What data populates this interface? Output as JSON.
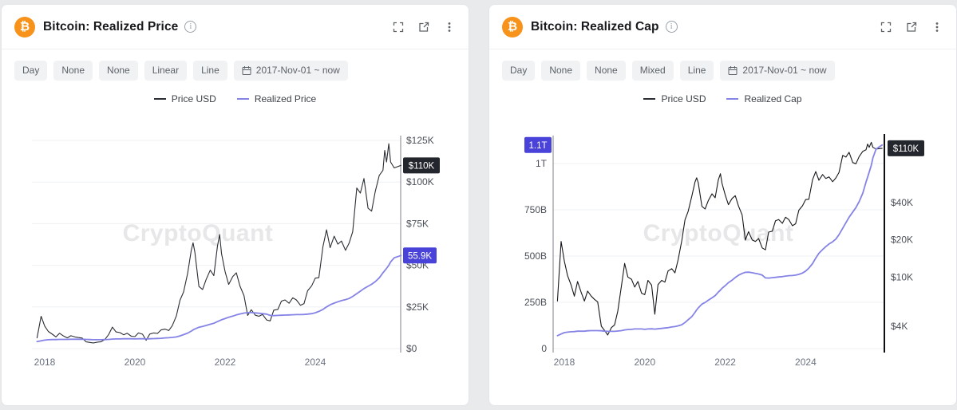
{
  "page": {
    "background": "#e9eaec",
    "watermark": "CryptoQuant"
  },
  "panels": [
    {
      "title": "Bitcoin: Realized Price",
      "icons": [
        "bitcoin-icon",
        "info-icon",
        "fullscreen-icon",
        "open-in-new-icon",
        "more-options-icon"
      ],
      "toolbar": {
        "chips": [
          "Day",
          "None",
          "None",
          "Linear",
          "Line"
        ],
        "date_range": "2017-Nov-01 ~ now"
      },
      "legend": [
        {
          "label": "Price USD",
          "color": "#2a2e34"
        },
        {
          "label": "Realized Price",
          "color": "#8583e6"
        }
      ]
    },
    {
      "title": "Bitcoin: Realized Cap",
      "icons": [
        "bitcoin-icon",
        "info-icon",
        "fullscreen-icon",
        "open-in-new-icon",
        "more-options-icon"
      ],
      "toolbar": {
        "chips": [
          "Day",
          "None",
          "None",
          "Mixed",
          "Line"
        ],
        "date_range": "2017-Nov-01 ~ now"
      },
      "legend": [
        {
          "label": "Price USD",
          "color": "#2a2e34"
        },
        {
          "label": "Realized Cap",
          "color": "#8583e6"
        }
      ]
    }
  ],
  "shared_series": {
    "x_years": [
      2017.83,
      2017.92,
      2018.0,
      2018.08,
      2018.17,
      2018.25,
      2018.33,
      2018.42,
      2018.5,
      2018.58,
      2018.67,
      2018.75,
      2018.83,
      2018.92,
      2019.0,
      2019.08,
      2019.17,
      2019.25,
      2019.33,
      2019.42,
      2019.5,
      2019.58,
      2019.67,
      2019.75,
      2019.83,
      2019.92,
      2020.0,
      2020.08,
      2020.17,
      2020.25,
      2020.33,
      2020.42,
      2020.5,
      2020.58,
      2020.67,
      2020.75,
      2020.83,
      2020.92,
      2021.0,
      2021.08,
      2021.17,
      2021.25,
      2021.29,
      2021.33,
      2021.42,
      2021.5,
      2021.58,
      2021.67,
      2021.75,
      2021.83,
      2021.88,
      2021.92,
      2022.0,
      2022.08,
      2022.17,
      2022.25,
      2022.33,
      2022.42,
      2022.5,
      2022.58,
      2022.67,
      2022.75,
      2022.83,
      2022.92,
      2023.0,
      2023.08,
      2023.17,
      2023.25,
      2023.33,
      2023.42,
      2023.5,
      2023.58,
      2023.67,
      2023.75,
      2023.83,
      2023.92,
      2024.0,
      2024.08,
      2024.17,
      2024.25,
      2024.33,
      2024.42,
      2024.5,
      2024.58,
      2024.67,
      2024.75,
      2024.83,
      2024.92,
      2025.0,
      2025.08,
      2025.17,
      2025.25,
      2025.33,
      2025.42,
      2025.5,
      2025.54,
      2025.58,
      2025.63,
      2025.67,
      2025.75,
      2025.9
    ],
    "price_usd_k": [
      6.4,
      19.4,
      13.5,
      10.3,
      8.6,
      7.0,
      9.2,
      7.5,
      6.4,
      7.7,
      7.0,
      6.6,
      6.3,
      4.0,
      3.7,
      3.4,
      3.9,
      4.1,
      5.3,
      8.5,
      12.9,
      10.0,
      9.6,
      8.3,
      9.2,
      7.4,
      7.2,
      9.4,
      8.6,
      5.0,
      8.7,
      9.4,
      9.1,
      11.2,
      11.7,
      10.8,
      13.8,
      19.7,
      29.0,
      34.0,
      45.2,
      58.9,
      63.5,
      58.0,
      37.3,
      35.5,
      41.5,
      47.1,
      43.8,
      61.3,
      68.5,
      57.2,
      46.2,
      38.5,
      43.2,
      45.5,
      37.6,
      31.8,
      19.9,
      23.3,
      20.0,
      19.4,
      20.5,
      17.2,
      16.6,
      23.1,
      23.5,
      28.5,
      29.2,
      27.2,
      30.5,
      29.2,
      26.0,
      27.0,
      34.7,
      37.7,
      42.3,
      42.6,
      61.2,
      71.3,
      60.6,
      67.5,
      62.7,
      64.6,
      59.0,
      63.3,
      70.2,
      96.4,
      93.4,
      102.1,
      84.3,
      82.5,
      94.2,
      104.0,
      107.0,
      119.0,
      112.0,
      123.0,
      112.0,
      108.5,
      110.0
    ],
    "realized_price_k": [
      4.2,
      4.7,
      5.1,
      5.3,
      5.4,
      5.4,
      5.5,
      5.5,
      5.5,
      5.6,
      5.6,
      5.6,
      5.6,
      5.5,
      5.4,
      5.3,
      5.3,
      5.3,
      5.4,
      5.5,
      5.7,
      5.8,
      5.8,
      5.9,
      5.9,
      5.9,
      5.8,
      5.9,
      5.9,
      5.8,
      5.9,
      6.0,
      6.1,
      6.2,
      6.4,
      6.5,
      6.7,
      7.0,
      7.6,
      8.4,
      9.3,
      10.5,
      11.2,
      11.8,
      12.8,
      13.3,
      13.9,
      14.6,
      15.2,
      16.2,
      16.8,
      17.3,
      18.0,
      18.8,
      19.5,
      20.2,
      20.8,
      21.3,
      21.6,
      21.6,
      21.4,
      21.2,
      21.0,
      20.7,
      19.9,
      19.8,
      19.9,
      20.0,
      20.1,
      20.2,
      20.3,
      20.4,
      20.4,
      20.5,
      20.7,
      21.0,
      21.5,
      22.3,
      23.5,
      25.0,
      26.3,
      27.3,
      28.1,
      28.8,
      29.4,
      30.1,
      31.3,
      33.0,
      34.5,
      36.0,
      37.4,
      38.6,
      40.2,
      42.5,
      45.5,
      46.8,
      48.2,
      50.0,
      52.0,
      54.5,
      55.9
    ],
    "realized_cap_b": [
      70,
      79,
      86,
      89,
      91,
      92,
      94,
      94,
      94,
      96,
      97,
      97,
      97,
      96,
      94,
      93,
      93,
      93,
      95,
      97,
      101,
      103,
      104,
      106,
      106,
      106,
      104,
      106,
      107,
      105,
      107,
      109,
      111,
      113,
      117,
      119,
      123,
      129,
      141,
      156,
      173,
      196,
      209,
      220,
      240,
      249,
      261,
      274,
      286,
      305,
      316,
      326,
      340,
      356,
      370,
      384,
      396,
      406,
      412,
      413,
      410,
      406,
      403,
      397,
      382,
      381,
      383,
      385,
      387,
      389,
      392,
      394,
      395,
      397,
      401,
      408,
      419,
      435,
      459,
      489,
      515,
      535,
      551,
      565,
      577,
      592,
      616,
      650,
      680,
      710,
      738,
      762,
      794,
      840,
      900,
      926,
      954,
      990,
      1030,
      1078,
      1100
    ]
  },
  "chart_data": [
    {
      "type": "line",
      "title": "Bitcoin: Realized Price",
      "grid": "horizontal",
      "legend_position": "top-center",
      "x": {
        "ticks": [
          2018,
          2020,
          2022,
          2024
        ],
        "range": [
          2017.83,
          2025.9
        ],
        "range_label": "2017-Nov-01 ~ now"
      },
      "y_axis": {
        "side": "right",
        "scale": "linear",
        "unit": "USD thousands",
        "ticks": [
          0,
          25,
          50,
          75,
          100,
          125
        ],
        "tick_labels": [
          "$0",
          "$25K",
          "$50K",
          "$75K",
          "$100K",
          "$125K"
        ],
        "ylim": [
          0,
          128
        ]
      },
      "series": [
        {
          "name": "Price USD",
          "color": "#2a2e34",
          "width": 1.1,
          "x_ref": "x_years",
          "values_ref": "price_usd_k"
        },
        {
          "name": "Realized Price",
          "color": "#8583e6",
          "width": 1.8,
          "x_ref": "x_years",
          "values_ref": "realized_price_k"
        }
      ],
      "badges": [
        {
          "label": "$110K",
          "bg": "#23262c",
          "series": 0
        },
        {
          "label": "55.9K",
          "bg": "#4a43d9",
          "series": 1
        }
      ]
    },
    {
      "type": "line",
      "title": "Bitcoin: Realized Cap",
      "grid": "horizontal",
      "legend_position": "top-center",
      "x": {
        "ticks": [
          2018,
          2020,
          2022,
          2024
        ],
        "range": [
          2017.83,
          2025.9
        ],
        "range_label": "2017-Nov-01 ~ now"
      },
      "y_axis_left": {
        "scale": "linear",
        "unit": "USD billions",
        "ticks": [
          0,
          250,
          500,
          750,
          1000
        ],
        "tick_labels": [
          "0",
          "250B",
          "500B",
          "750B",
          "1T"
        ],
        "ylim": [
          0,
          1150
        ]
      },
      "y_axis_right": {
        "scale": "log",
        "unit": "USD thousands",
        "ticks": [
          4,
          10,
          20,
          40
        ],
        "tick_labels": [
          "$4K",
          "$10K",
          "$20K",
          "$40K"
        ]
      },
      "series": [
        {
          "name": "Realized Cap",
          "color": "#8583e6",
          "width": 1.8,
          "axis": "left",
          "x_ref": "x_years",
          "values_ref": "realized_cap_b"
        },
        {
          "name": "Price USD",
          "color": "#17191d",
          "width": 1.1,
          "axis": "right",
          "x_ref": "x_years",
          "values_ref": "price_usd_k"
        }
      ],
      "badges": [
        {
          "label": "1.1T",
          "bg": "#4a43d9",
          "series": 0,
          "position": "left"
        },
        {
          "label": "$110K",
          "bg": "#23262c",
          "series": 1,
          "position": "right"
        }
      ]
    }
  ]
}
